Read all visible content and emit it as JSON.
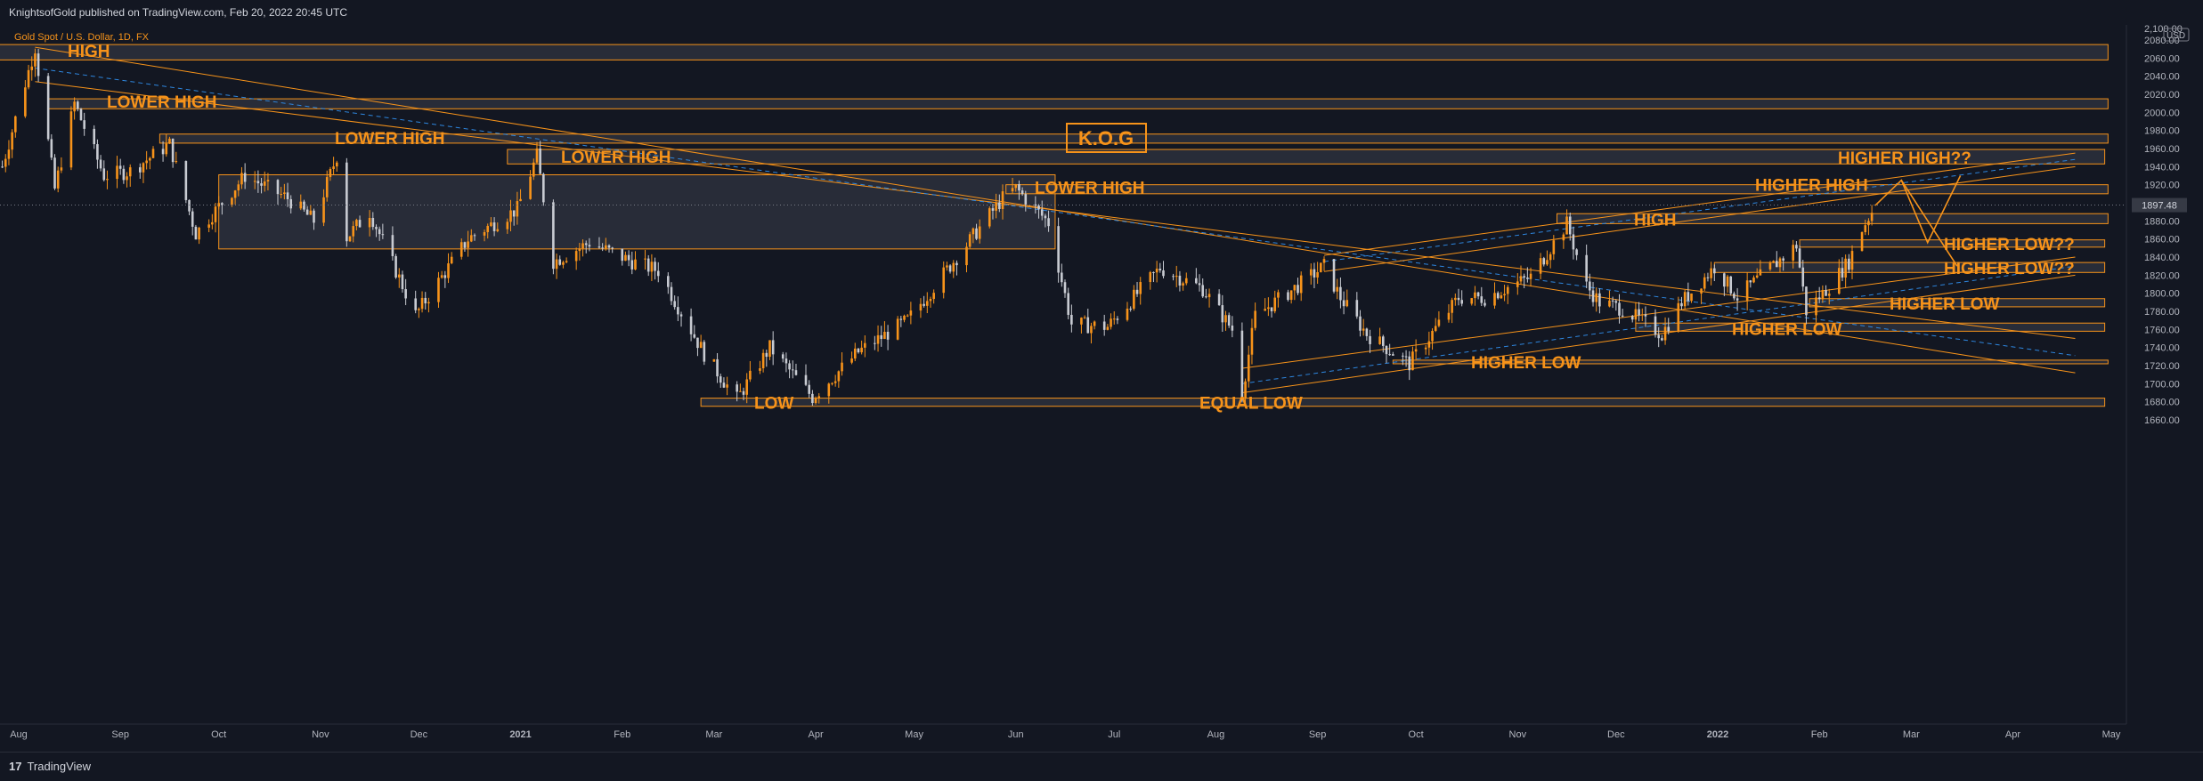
{
  "header": {
    "published_text": "KnightsofGold published on TradingView.com, Feb 20, 2022 20:45 UTC"
  },
  "footer": {
    "logo_mark": "17",
    "logo_text": "TradingView"
  },
  "colors": {
    "background": "#131722",
    "accent": "#f7931a",
    "up_candle": "#f7931a",
    "down_candle": "#c8cbd2",
    "trend_dashed": "#2e86de",
    "zone_fill": "#3a3e4a"
  },
  "chart_data": {
    "type": "candlestick",
    "symbol_line": "Gold Spot / U.S. Dollar, 1D, FX",
    "brand_label": "K.O.G",
    "y_axis": {
      "unit": "USD",
      "ylim": [
        1640,
        2100
      ],
      "ticks": [
        1660,
        1680,
        1700,
        1720,
        1740,
        1760,
        1780,
        1800,
        1820,
        1840,
        1860,
        1880,
        1900,
        1920,
        1940,
        1960,
        1980,
        2000,
        2020,
        2040,
        2060,
        2080
      ],
      "tick_labels": [
        "1660.00",
        "1680.00",
        "1700.00",
        "1720.00",
        "1740.00",
        "1760.00",
        "1780.00",
        "1800.00",
        "1820.00",
        "1840.00",
        "1860.00",
        "1880.00",
        "1900.00",
        "1920.00",
        "1940.00",
        "1960.00",
        "1980.00",
        "2000.00",
        "2020.00",
        "2040.00",
        "2060.00",
        "2080.00"
      ],
      "top_label": "2,100.00"
    },
    "x_axis": {
      "xlim": [
        "2020-07-26",
        "2022-05-01"
      ],
      "ticks": [
        {
          "date": "2020-08-01",
          "label": "Aug"
        },
        {
          "date": "2020-09-01",
          "label": "Sep"
        },
        {
          "date": "2020-10-01",
          "label": "Oct"
        },
        {
          "date": "2020-11-01",
          "label": "Nov"
        },
        {
          "date": "2020-12-01",
          "label": "Dec"
        },
        {
          "date": "2021-01-01",
          "label": "2021"
        },
        {
          "date": "2021-02-01",
          "label": "Feb"
        },
        {
          "date": "2021-03-01",
          "label": "Mar"
        },
        {
          "date": "2021-04-01",
          "label": "Apr"
        },
        {
          "date": "2021-05-01",
          "label": "May"
        },
        {
          "date": "2021-06-01",
          "label": "Jun"
        },
        {
          "date": "2021-07-01",
          "label": "Jul"
        },
        {
          "date": "2021-08-01",
          "label": "Aug"
        },
        {
          "date": "2021-09-01",
          "label": "Sep"
        },
        {
          "date": "2021-10-01",
          "label": "Oct"
        },
        {
          "date": "2021-11-01",
          "label": "Nov"
        },
        {
          "date": "2021-12-01",
          "label": "Dec"
        },
        {
          "date": "2022-01-01",
          "label": "2022"
        },
        {
          "date": "2022-02-01",
          "label": "Feb"
        },
        {
          "date": "2022-03-01",
          "label": "Mar"
        },
        {
          "date": "2022-04-01",
          "label": "Apr"
        },
        {
          "date": "2022-05-01",
          "label": "May"
        }
      ]
    },
    "last_price": {
      "value": 1897.48,
      "label": "1897.48"
    },
    "price_path": [
      [
        "2020-07-27",
        1940
      ],
      [
        "2020-08-06",
        2072
      ],
      [
        "2020-08-12",
        1915
      ],
      [
        "2020-08-18",
        2010
      ],
      [
        "2020-08-27",
        1930
      ],
      [
        "2020-09-04",
        1935
      ],
      [
        "2020-09-16",
        1965
      ],
      [
        "2020-09-24",
        1866
      ],
      [
        "2020-10-09",
        1930
      ],
      [
        "2020-10-22",
        1905
      ],
      [
        "2020-10-30",
        1880
      ],
      [
        "2020-11-06",
        1952
      ],
      [
        "2020-11-09",
        1862
      ],
      [
        "2020-11-16",
        1890
      ],
      [
        "2020-11-30",
        1776
      ],
      [
        "2020-12-16",
        1860
      ],
      [
        "2020-12-31",
        1893
      ],
      [
        "2021-01-06",
        1952
      ],
      [
        "2021-01-11",
        1835
      ],
      [
        "2021-01-22",
        1856
      ],
      [
        "2021-02-04",
        1835
      ],
      [
        "2021-02-12",
        1825
      ],
      [
        "2021-02-26",
        1733
      ],
      [
        "2021-03-08",
        1683
      ],
      [
        "2021-03-18",
        1740
      ],
      [
        "2021-03-31",
        1685
      ],
      [
        "2021-04-14",
        1735
      ],
      [
        "2021-04-29",
        1770
      ],
      [
        "2021-05-14",
        1840
      ],
      [
        "2021-05-28",
        1905
      ],
      [
        "2021-06-01",
        1916
      ],
      [
        "2021-06-11",
        1878
      ],
      [
        "2021-06-18",
        1766
      ],
      [
        "2021-06-29",
        1763
      ],
      [
        "2021-07-15",
        1828
      ],
      [
        "2021-07-28",
        1805
      ],
      [
        "2021-08-06",
        1760
      ],
      [
        "2021-08-09",
        1690
      ],
      [
        "2021-08-13",
        1775
      ],
      [
        "2021-08-24",
        1803
      ],
      [
        "2021-09-03",
        1830
      ],
      [
        "2021-09-08",
        1795
      ],
      [
        "2021-09-16",
        1755
      ],
      [
        "2021-09-29",
        1722
      ],
      [
        "2021-10-14",
        1795
      ],
      [
        "2021-10-22",
        1795
      ],
      [
        "2021-11-05",
        1818
      ],
      [
        "2021-11-16",
        1877
      ],
      [
        "2021-11-22",
        1808
      ],
      [
        "2021-11-26",
        1790
      ],
      [
        "2021-12-03",
        1783
      ],
      [
        "2021-12-15",
        1755
      ],
      [
        "2021-12-21",
        1790
      ],
      [
        "2021-12-31",
        1829
      ],
      [
        "2022-01-07",
        1796
      ],
      [
        "2022-01-14",
        1818
      ],
      [
        "2022-01-25",
        1853
      ],
      [
        "2022-01-28",
        1780
      ],
      [
        "2022-02-04",
        1808
      ],
      [
        "2022-02-10",
        1835
      ],
      [
        "2022-02-14",
        1871
      ],
      [
        "2022-02-18",
        1897
      ]
    ],
    "zones": [
      {
        "label": "HIGH",
        "from": "2020-07-26",
        "to": "2022-04-30",
        "low": 2058,
        "high": 2075
      },
      {
        "label": "LOWER HIGH",
        "from": "2020-08-10",
        "to": "2022-04-30",
        "low": 2004,
        "high": 2015
      },
      {
        "label": "LOWER HIGH",
        "from": "2020-09-13",
        "to": "2022-04-30",
        "low": 1966,
        "high": 1976
      },
      {
        "label": "LOWER HIGH",
        "from": "2020-12-28",
        "to": "2022-04-29",
        "low": 1943,
        "high": 1959
      },
      {
        "label": "",
        "from": "2020-10-01",
        "to": "2021-06-13",
        "low": 1849,
        "high": 1931
      },
      {
        "label": "LOWER HIGH",
        "from": "2021-05-29",
        "to": "2022-04-30",
        "low": 1910,
        "high": 1920
      },
      {
        "label": "HIGH",
        "from": "2021-11-13",
        "to": "2022-04-30",
        "low": 1877,
        "high": 1888
      },
      {
        "label": "HIGHER LOW??",
        "from": "2022-01-26",
        "to": "2022-04-29",
        "low": 1851,
        "high": 1859
      },
      {
        "label": "HIGHER LOW??",
        "from": "2021-12-31",
        "to": "2022-04-29",
        "low": 1823,
        "high": 1834
      },
      {
        "label": "HIGHER LOW",
        "from": "2022-01-29",
        "to": "2022-04-29",
        "low": 1785,
        "high": 1794
      },
      {
        "label": "HIGHER LOW",
        "from": "2021-12-07",
        "to": "2022-04-29",
        "low": 1758,
        "high": 1767
      },
      {
        "label": "HIGHER LOW",
        "from": "2021-09-24",
        "to": "2022-04-30",
        "low": 1722,
        "high": 1726
      },
      {
        "label": "LOW",
        "from": "2021-02-25",
        "to": "2022-04-29",
        "low": 1675,
        "high": 1684
      }
    ],
    "zone_side_labels": [
      "EQUAL LOW",
      "HIGHER HIGH",
      "HIGHER HIGH??"
    ],
    "trend_lines": [
      {
        "style": "solid",
        "points": [
          [
            "2020-08-06",
            2072
          ],
          [
            "2022-04-20",
            1712
          ]
        ]
      },
      {
        "style": "solid",
        "points": [
          [
            "2020-08-06",
            2034
          ],
          [
            "2022-04-20",
            1750
          ]
        ]
      },
      {
        "style": "dashed",
        "points": [
          [
            "2020-08-06",
            2049
          ],
          [
            "2022-04-20",
            1731
          ]
        ]
      },
      {
        "style": "solid",
        "points": [
          [
            "2021-08-09",
            1690
          ],
          [
            "2022-04-20",
            1820
          ]
        ]
      },
      {
        "style": "solid",
        "points": [
          [
            "2021-08-09",
            1717
          ],
          [
            "2022-04-20",
            1840
          ]
        ]
      },
      {
        "style": "dashed",
        "points": [
          [
            "2021-08-09",
            1700
          ],
          [
            "2022-04-20",
            1830
          ]
        ]
      },
      {
        "style": "solid",
        "points": [
          [
            "2021-09-03",
            1842
          ],
          [
            "2022-04-20",
            1955
          ]
        ]
      },
      {
        "style": "solid",
        "points": [
          [
            "2021-09-03",
            1824
          ],
          [
            "2022-04-20",
            1940
          ]
        ]
      },
      {
        "style": "dashed",
        "points": [
          [
            "2021-09-03",
            1835
          ],
          [
            "2022-04-20",
            1948
          ]
        ]
      }
    ],
    "projection_path": [
      [
        "2022-02-18",
        1897
      ],
      [
        "2022-02-26",
        1925
      ],
      [
        "2022-03-06",
        1856
      ],
      [
        "2022-03-16",
        1930
      ]
    ],
    "projection_path_2": [
      [
        "2022-02-26",
        1925
      ],
      [
        "2022-03-15",
        1830
      ]
    ]
  }
}
